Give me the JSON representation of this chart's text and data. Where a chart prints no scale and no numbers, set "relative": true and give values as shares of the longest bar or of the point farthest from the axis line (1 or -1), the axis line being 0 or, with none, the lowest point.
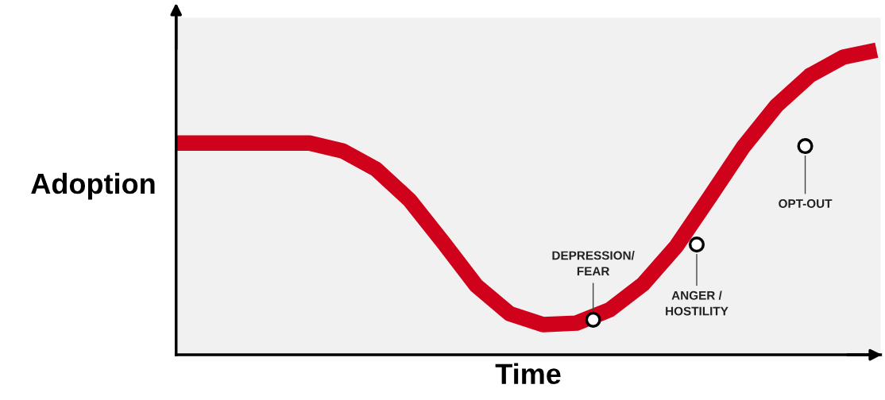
{
  "chart_data": {
    "type": "line",
    "relative": true,
    "xlabel": "Time",
    "ylabel": "Adoption",
    "categories": [
      null,
      null,
      null,
      null,
      null,
      null,
      null,
      null,
      null,
      null,
      null,
      null,
      null,
      null,
      null,
      null,
      null,
      null,
      null,
      null,
      null,
      null
    ],
    "series": [
      {
        "color": "#d0021b",
        "values": [
          0.695,
          0.695,
          0.695,
          0.695,
          0.695,
          0.669,
          0.609,
          0.508,
          0.37,
          0.227,
          0.135,
          0.099,
          0.104,
          0.148,
          0.232,
          0.357,
          0.518,
          0.682,
          0.818,
          0.917,
          0.977,
          1.0
        ]
      }
    ],
    "annotations": [
      "DEPRESSION/\nFEAR",
      "ANGER /\nHOSTILITY",
      "OPT-OUT"
    ],
    "line_style": "solid",
    "grid": false
  }
}
